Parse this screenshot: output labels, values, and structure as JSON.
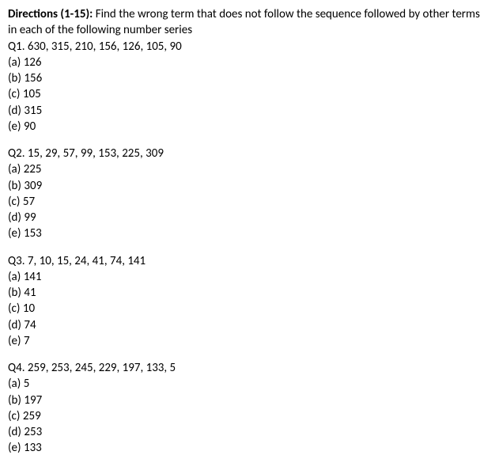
{
  "directions": {
    "label": "Directions (1-15):",
    "text": "Find the wrong term that does not follow the sequence followed by other terms in each of the following number series"
  },
  "questions": [
    {
      "number": "Q1.",
      "series": "630,  315,  210,  156,  126,  105,  90",
      "options": [
        {
          "letter": "(a)",
          "value": "126"
        },
        {
          "letter": "(b)",
          "value": "156"
        },
        {
          "letter": "(c)",
          "value": "105"
        },
        {
          "letter": "(d)",
          "value": "315"
        },
        {
          "letter": "(e)",
          "value": "90"
        }
      ]
    },
    {
      "number": "Q2.",
      "series": "15,  29,  57,  99,  153,  225,  309",
      "options": [
        {
          "letter": "(a)",
          "value": "225"
        },
        {
          "letter": "(b)",
          "value": "309"
        },
        {
          "letter": "(c)",
          "value": "57"
        },
        {
          "letter": "(d)",
          "value": "99"
        },
        {
          "letter": "(e)",
          "value": "153"
        }
      ]
    },
    {
      "number": "Q3.",
      "series": "7,  10,  15,  24,  41,  74,  141",
      "options": [
        {
          "letter": "(a)",
          "value": "141"
        },
        {
          "letter": "(b)",
          "value": "41"
        },
        {
          "letter": "(c)",
          "value": "10"
        },
        {
          "letter": "(d)",
          "value": "74"
        },
        {
          "letter": "(e)",
          "value": "7"
        }
      ]
    },
    {
      "number": "Q4.",
      "series": "259,  253,  245,  229,  197,  133,  5",
      "options": [
        {
          "letter": "(a)",
          "value": "5"
        },
        {
          "letter": "(b)",
          "value": "197"
        },
        {
          "letter": "(c)",
          "value": "259"
        },
        {
          "letter": "(d)",
          "value": "253"
        },
        {
          "letter": "(e)",
          "value": "133"
        }
      ]
    }
  ]
}
